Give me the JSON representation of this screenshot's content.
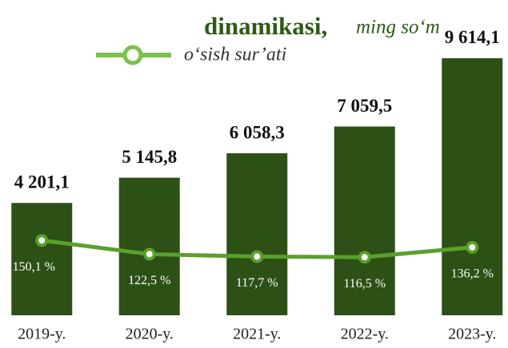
{
  "chart_data": {
    "type": "bar",
    "title": "dinamikasi,",
    "subtitle": "ming so‘m",
    "categories": [
      "2019-y.",
      "2020-y.",
      "2021-y.",
      "2022-y.",
      "2023-y."
    ],
    "values": [
      4201.1,
      5145.8,
      6058.3,
      7059.5,
      9614.1
    ],
    "value_labels": [
      "4 201,1",
      "5 145,8",
      "6 058,3",
      "7 059,5",
      "9 614,1"
    ],
    "color": "#2d5016",
    "ylim": [
      0,
      10000
    ],
    "series": [
      {
        "name": "o‘sish sur’ati",
        "color": "#5aa02c",
        "axis": "y2",
        "values": [
          150.1,
          122.5,
          117.7,
          116.5,
          136.2
        ],
        "value_labels": [
          "150,1 %",
          "122,5 %",
          "117,7 %",
          "116,5 %",
          "136,2 %"
        ]
      }
    ],
    "y2lim": [
      0,
      536
    ]
  }
}
